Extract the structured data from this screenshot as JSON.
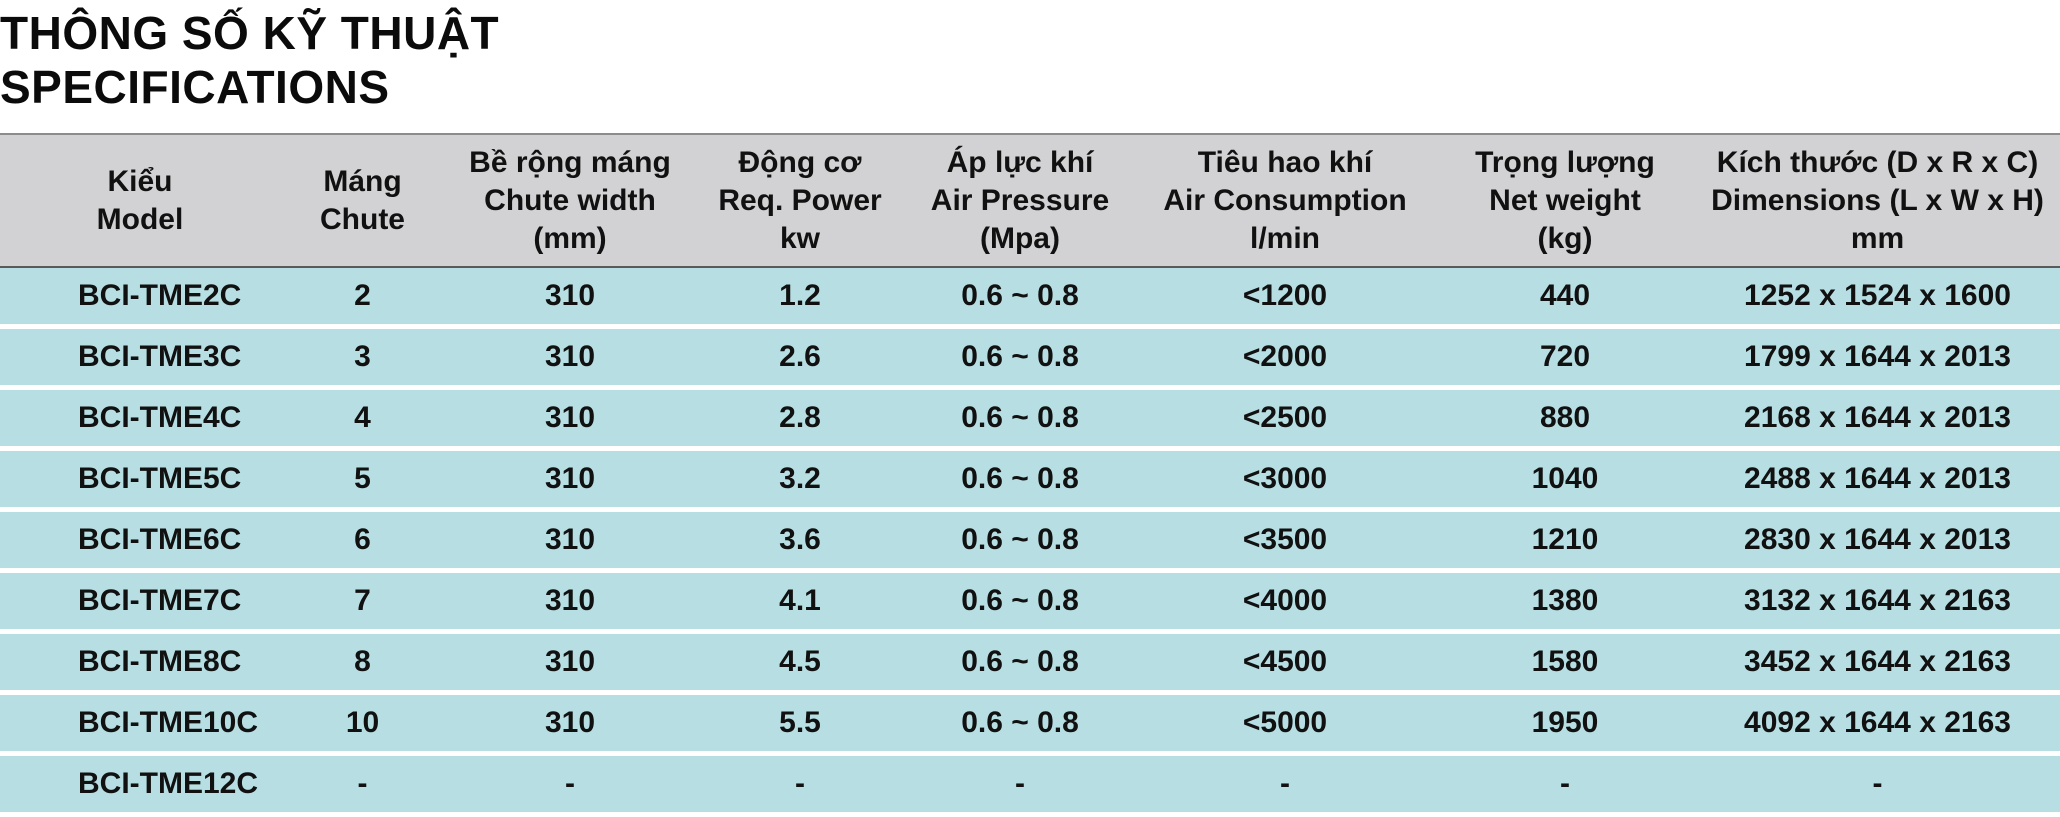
{
  "title": {
    "line1": "THÔNG SỐ KỸ THUẬT",
    "line2": "SPECIFICATIONS"
  },
  "table": {
    "headers": [
      [
        "Kiểu",
        "Model"
      ],
      [
        "Máng",
        "Chute"
      ],
      [
        "Bề rộng máng",
        "Chute width",
        "(mm)"
      ],
      [
        "Động cơ",
        "Req. Power",
        "kw"
      ],
      [
        "Áp lực khí",
        "Air Pressure",
        "(Mpa)"
      ],
      [
        "Tiêu hao khí",
        "Air Consumption",
        "l/min"
      ],
      [
        "Trọng lượng",
        "Net weight",
        "(kg)"
      ],
      [
        "Kích thước (D x R x C)",
        "Dimensions (L x W x H)",
        "mm"
      ]
    ],
    "rows": [
      [
        "BCI-TME2C",
        "2",
        "310",
        "1.2",
        "0.6 ~ 0.8",
        "<1200",
        "440",
        "1252 x 1524 x 1600"
      ],
      [
        "BCI-TME3C",
        "3",
        "310",
        "2.6",
        "0.6 ~ 0.8",
        "<2000",
        "720",
        "1799 x 1644 x 2013"
      ],
      [
        "BCI-TME4C",
        "4",
        "310",
        "2.8",
        "0.6 ~ 0.8",
        "<2500",
        "880",
        "2168 x 1644 x 2013"
      ],
      [
        "BCI-TME5C",
        "5",
        "310",
        "3.2",
        "0.6 ~ 0.8",
        "<3000",
        "1040",
        "2488 x 1644 x 2013"
      ],
      [
        "BCI-TME6C",
        "6",
        "310",
        "3.6",
        "0.6 ~ 0.8",
        "<3500",
        "1210",
        "2830 x 1644 x 2013"
      ],
      [
        "BCI-TME7C",
        "7",
        "310",
        "4.1",
        "0.6 ~ 0.8",
        "<4000",
        "1380",
        "3132 x 1644 x 2163"
      ],
      [
        "BCI-TME8C",
        "8",
        "310",
        "4.5",
        "0.6 ~ 0.8",
        "<4500",
        "1580",
        "3452 x 1644 x 2163"
      ],
      [
        "BCI-TME10C",
        "10",
        "310",
        "5.5",
        "0.6 ~ 0.8",
        "<5000",
        "1950",
        "4092 x 1644 x 2163"
      ],
      [
        "BCI-TME12C",
        "-",
        "-",
        "-",
        "-",
        "-",
        "-",
        "-"
      ]
    ]
  },
  "colors": {
    "header_bg": "#d2d2d4",
    "row_bg": "#b7dfe3",
    "row_separator": "#ffffff"
  }
}
